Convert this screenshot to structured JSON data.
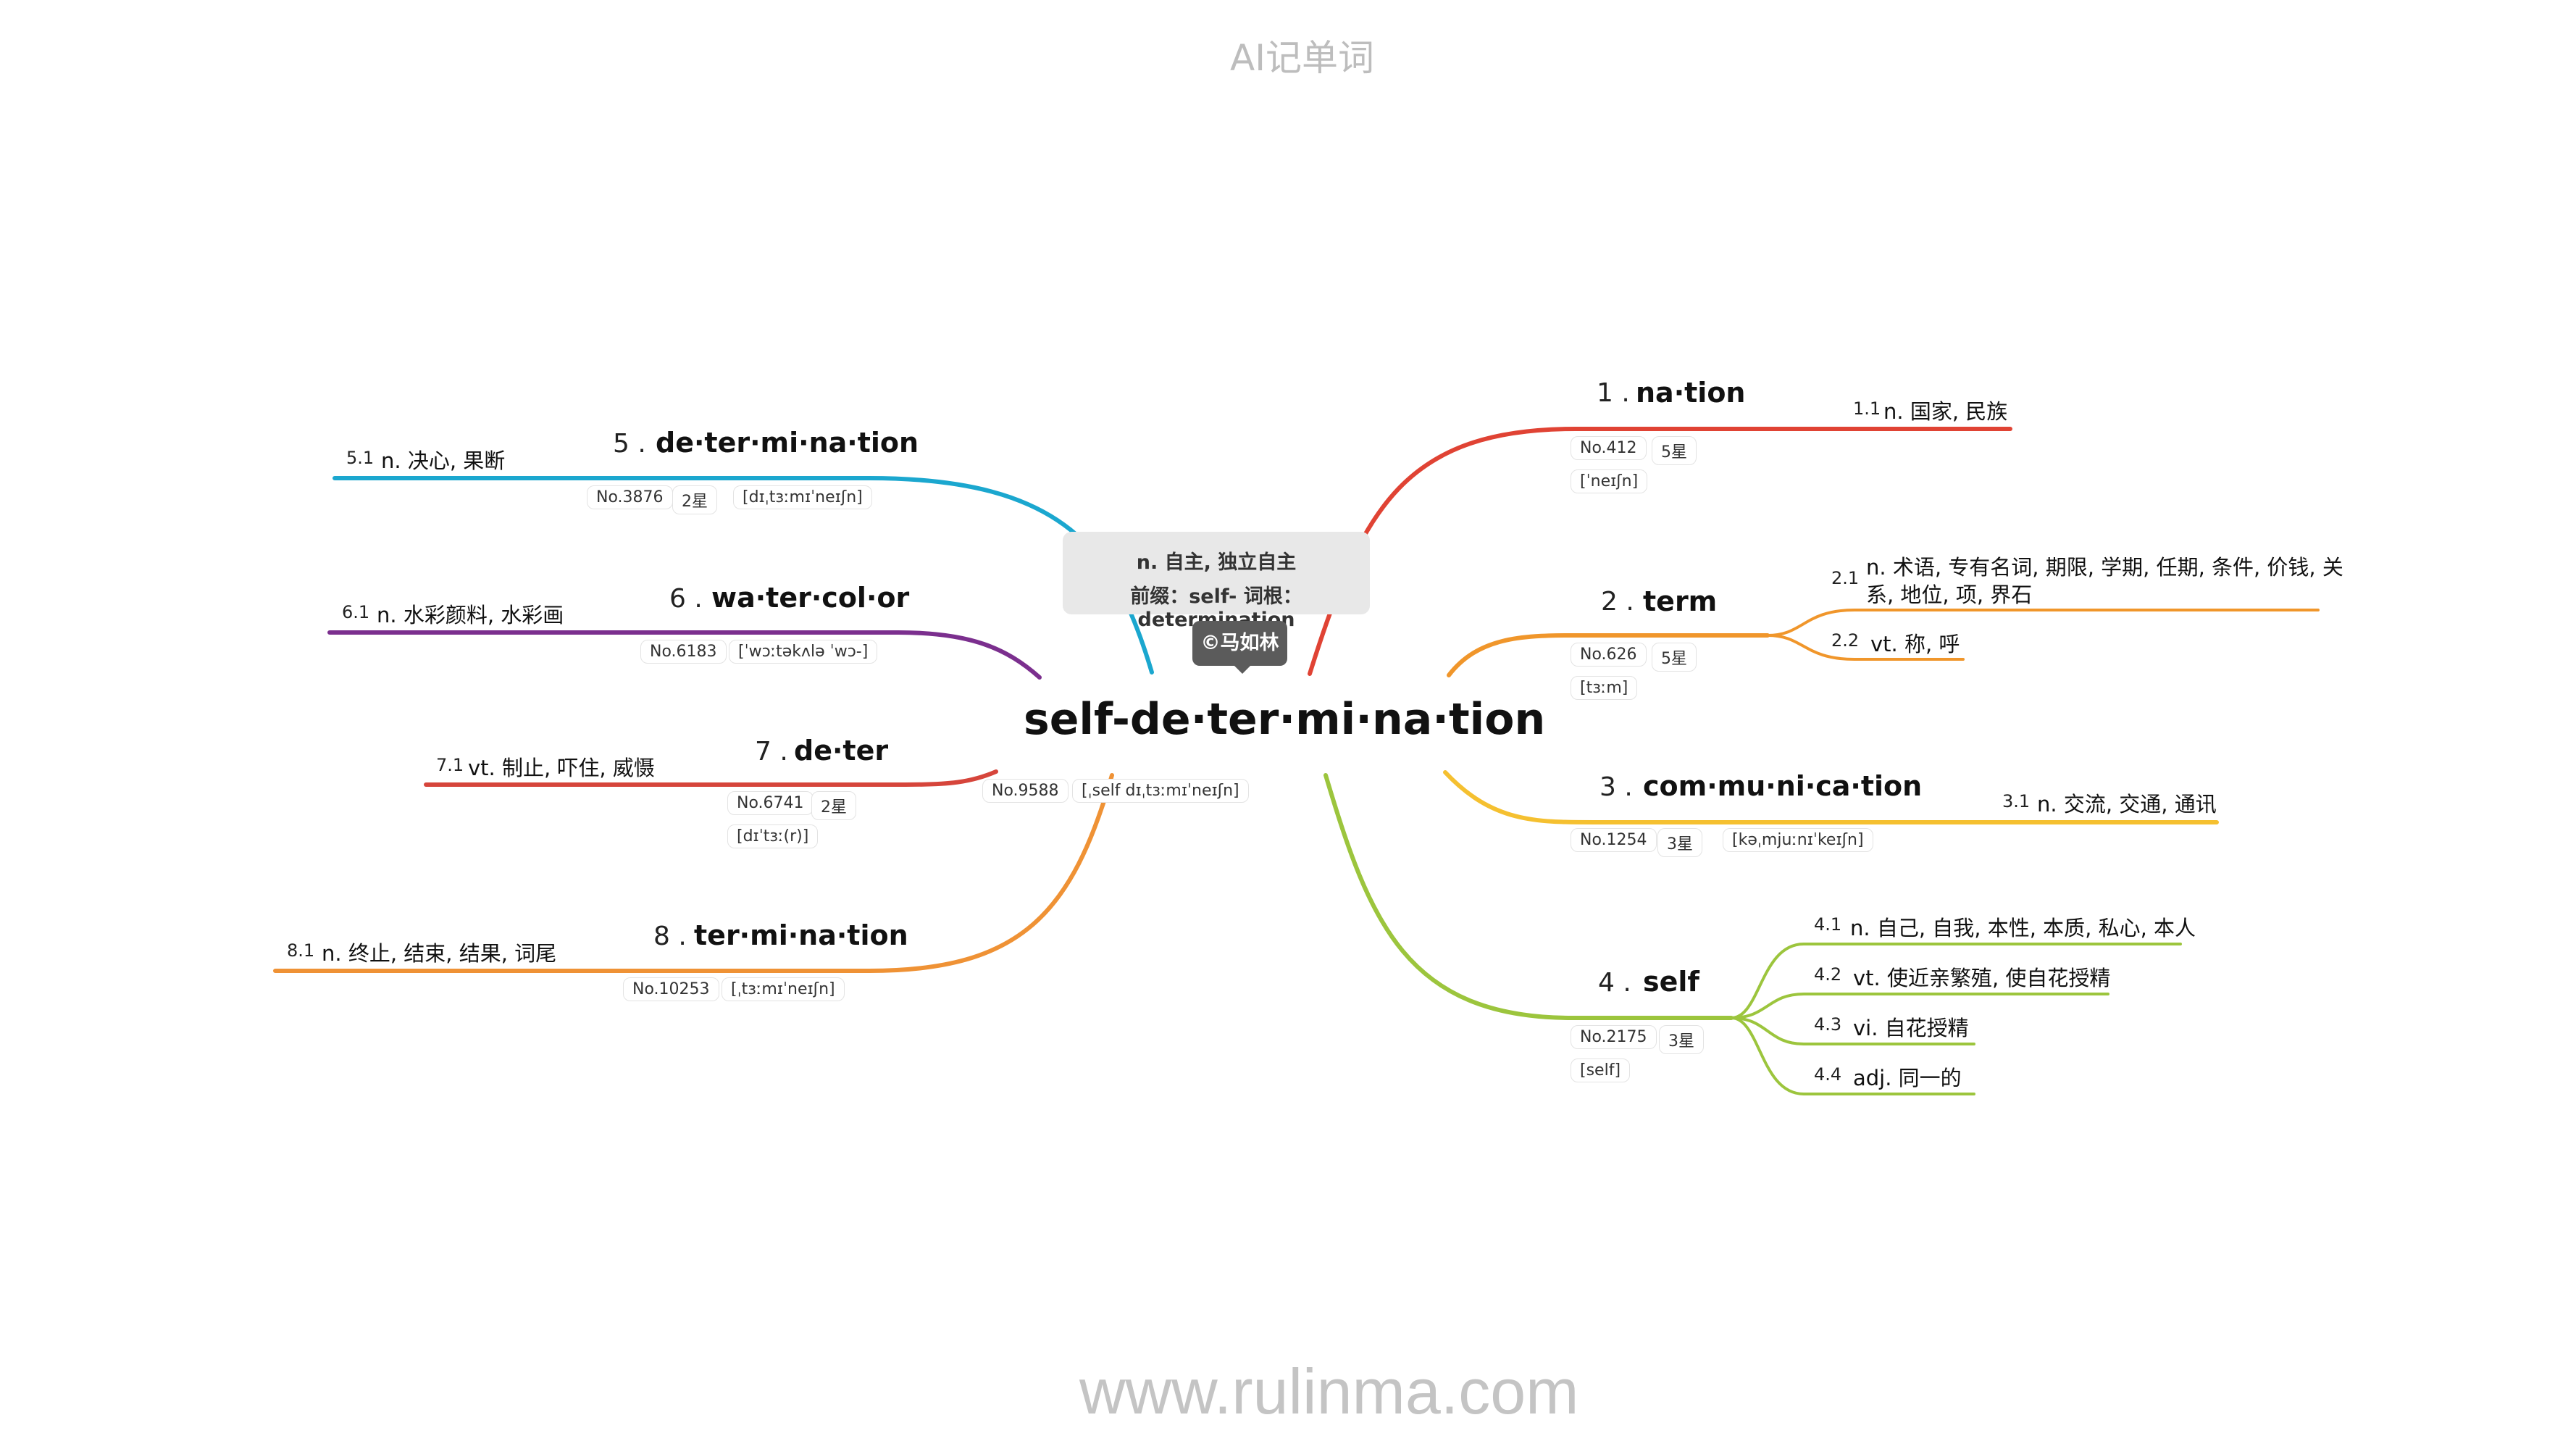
{
  "header": {
    "title": "AI记单词"
  },
  "footer": {
    "url": "www.rulinma.com"
  },
  "central": {
    "word": "self-de·ter·mi·na·tion",
    "meaning": "n. 自主, 独立自主",
    "morph": "前缀：self- 词根：determination",
    "watermark": "©马如林",
    "no": "No.9588",
    "phon": "[ˌself dɪˌtɜːmɪˈneɪʃn]"
  },
  "branches": [
    {
      "num": "1 .",
      "word": "na·tion",
      "no": "No.412",
      "stars": "5星",
      "phon": "[ˈneɪʃn]",
      "color": "#e04334",
      "senses": [
        {
          "num": "1.1",
          "def": "n. 国家, 民族"
        }
      ]
    },
    {
      "num": "2 .",
      "word": "term",
      "no": "No.626",
      "stars": "5星",
      "phon": "[tɜːm]",
      "color": "#f0962b",
      "senses": [
        {
          "num": "2.1",
          "def": "n. 术语, 专有名词, 期限, 学期, 任期, 条件, 价钱, 关",
          "def2": "系, 地位, 项, 界石"
        },
        {
          "num": "2.2",
          "def": "vt. 称, 呼"
        }
      ]
    },
    {
      "num": "3 .",
      "word": "com·mu·ni·ca·tion",
      "no": "No.1254",
      "stars": "3星",
      "phon": "[kəˌmjuːnɪˈkeɪʃn]",
      "color": "#f5c030",
      "senses": [
        {
          "num": "3.1",
          "def": "n. 交流, 交通, 通讯"
        }
      ]
    },
    {
      "num": "4 .",
      "word": "self",
      "no": "No.2175",
      "stars": "3星",
      "phon": "[self]",
      "color": "#9cc53d",
      "senses": [
        {
          "num": "4.1",
          "def": "n. 自己, 自我, 本性, 本质, 私心, 本人"
        },
        {
          "num": "4.2",
          "def": "vt. 使近亲繁殖, 使自花授精"
        },
        {
          "num": "4.3",
          "def": "vi. 自花授精"
        },
        {
          "num": "4.4",
          "def": "adj. 同一的"
        }
      ]
    },
    {
      "num": "5 .",
      "word": "de·ter·mi·na·tion",
      "no": "No.3876",
      "stars": "2星",
      "phon": "[dɪˌtɜːmɪˈneɪʃn]",
      "color": "#1ba7cf",
      "senses": [
        {
          "num": "5.1",
          "def": "n. 决心, 果断"
        }
      ]
    },
    {
      "num": "6 .",
      "word": "wa·ter·col·or",
      "no": "No.6183",
      "phon": "[ˈwɔːtəkʌlə ˈwɔ-]",
      "color": "#7b2f8e",
      "senses": [
        {
          "num": "6.1",
          "def": "n. 水彩颜料, 水彩画"
        }
      ]
    },
    {
      "num": "7 .",
      "word": "de·ter",
      "no": "No.6741",
      "stars": "2星",
      "phon": "[dɪˈtɜː(r)]",
      "color": "#d6453b",
      "senses": [
        {
          "num": "7.1",
          "def": "vt. 制止, 吓住, 威慑"
        }
      ]
    },
    {
      "num": "8 .",
      "word": "ter·mi·na·tion",
      "no": "No.10253",
      "phon": "[ˌtɜːmɪˈneɪʃn]",
      "color": "#ef9235",
      "senses": [
        {
          "num": "8.1",
          "def": "n. 终止, 结束, 结果, 词尾"
        }
      ]
    }
  ]
}
